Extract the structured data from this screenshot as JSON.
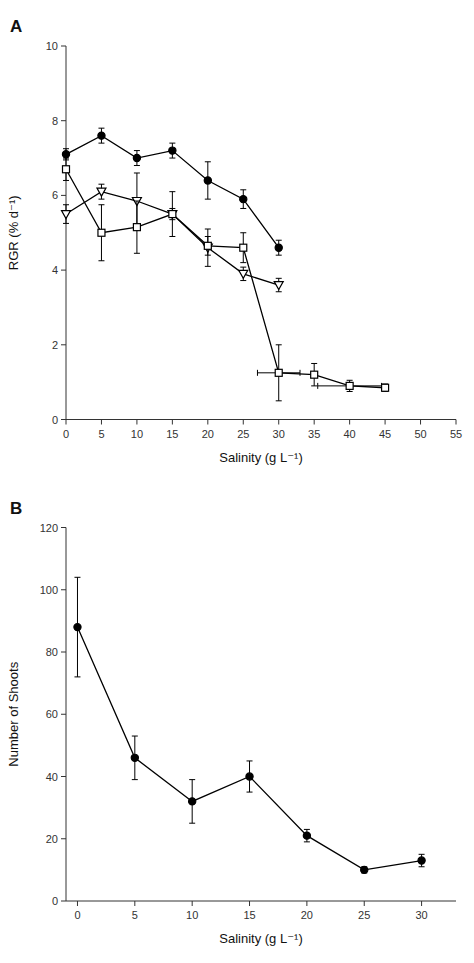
{
  "chart_data": [
    {
      "type": "line",
      "title": "A",
      "x_label": "Salinity (g L⁻¹)",
      "y_label": "RGR (% d⁻¹)",
      "xlim": [
        0,
        55
      ],
      "ylim": [
        0,
        10
      ],
      "xticks": [
        0,
        5,
        10,
        15,
        20,
        25,
        30,
        35,
        40,
        45,
        50,
        55
      ],
      "yticks": [
        0,
        2,
        4,
        6,
        8,
        10
      ],
      "grid": false,
      "series": [
        {
          "color": "#000000",
          "marker": "circle",
          "line_style": "solid",
          "x": [
            0,
            5,
            10,
            15,
            20,
            25,
            30
          ],
          "values": [
            7.1,
            7.6,
            7.0,
            7.2,
            6.4,
            5.9,
            4.6
          ],
          "errors": [
            0.15,
            0.2,
            0.2,
            0.2,
            0.5,
            0.25,
            0.2
          ]
        },
        {
          "color": "#000000",
          "marker": "triangle-down-open",
          "line_style": "solid",
          "x": [
            0,
            5,
            10,
            15,
            20,
            25,
            30
          ],
          "values": [
            5.5,
            6.1,
            5.85,
            5.5,
            4.6,
            3.9,
            3.6
          ],
          "errors": [
            0.25,
            0.2,
            0.75,
            0.6,
            0.5,
            0.18,
            0.18
          ]
        },
        {
          "color": "#000000",
          "marker": "square-open",
          "line_style": "solid",
          "x": [
            0,
            5,
            10,
            15,
            20,
            25,
            30,
            35,
            40,
            45
          ],
          "values": [
            6.7,
            5.0,
            5.15,
            5.5,
            4.65,
            4.6,
            1.25,
            1.2,
            0.9,
            0.85
          ],
          "errors": [
            0.3,
            0.75,
            0.7,
            0.15,
            0.25,
            0.4,
            0.75,
            0.3,
            0.15,
            0.1
          ],
          "x_errors": [
            null,
            null,
            null,
            null,
            null,
            null,
            3.0,
            null,
            4.5,
            null
          ]
        }
      ]
    },
    {
      "type": "line",
      "title": "B",
      "x_label": "Salinity (g L⁻¹)",
      "y_label": "Number of Shoots",
      "xlim": [
        -1,
        33
      ],
      "ylim": [
        0,
        120
      ],
      "xticks": [
        0,
        5,
        10,
        15,
        20,
        25,
        30
      ],
      "yticks": [
        0,
        20,
        40,
        60,
        80,
        100,
        120
      ],
      "grid": false,
      "series": [
        {
          "color": "#000000",
          "marker": "circle",
          "line_style": "solid",
          "x": [
            0,
            5,
            10,
            15,
            20,
            25,
            30
          ],
          "values": [
            88,
            46,
            32,
            40,
            21,
            10,
            13
          ],
          "errors": [
            16,
            7,
            7,
            5,
            2,
            1,
            2
          ]
        }
      ]
    }
  ]
}
